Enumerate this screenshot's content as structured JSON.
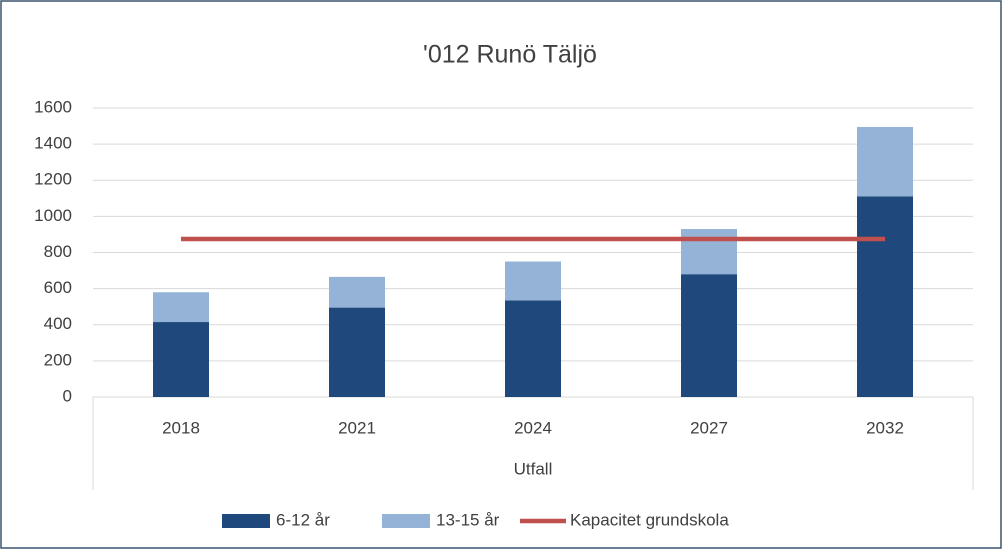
{
  "chart_data": {
    "type": "bar",
    "stacked": true,
    "title": "'012 Runö Täljö",
    "categories": [
      "2018",
      "2021",
      "2024",
      "2027",
      "2032"
    ],
    "category_group": "Utfall",
    "series": [
      {
        "name": "6-12 år",
        "color": "#1f497d",
        "type": "bar",
        "values": [
          415,
          495,
          535,
          680,
          1110
        ]
      },
      {
        "name": "13-15 år",
        "color": "#95b3d7",
        "type": "bar",
        "values": [
          165,
          170,
          215,
          250,
          385
        ]
      },
      {
        "name": "Kapacitet grundskola",
        "color": "#c0504d",
        "type": "line",
        "values": [
          875,
          875,
          875,
          875,
          875
        ]
      }
    ],
    "ylim": [
      0,
      1600
    ],
    "yticks": [
      0,
      200,
      400,
      600,
      800,
      1000,
      1200,
      1400,
      1600
    ],
    "grid": true,
    "legend": "bottom"
  }
}
